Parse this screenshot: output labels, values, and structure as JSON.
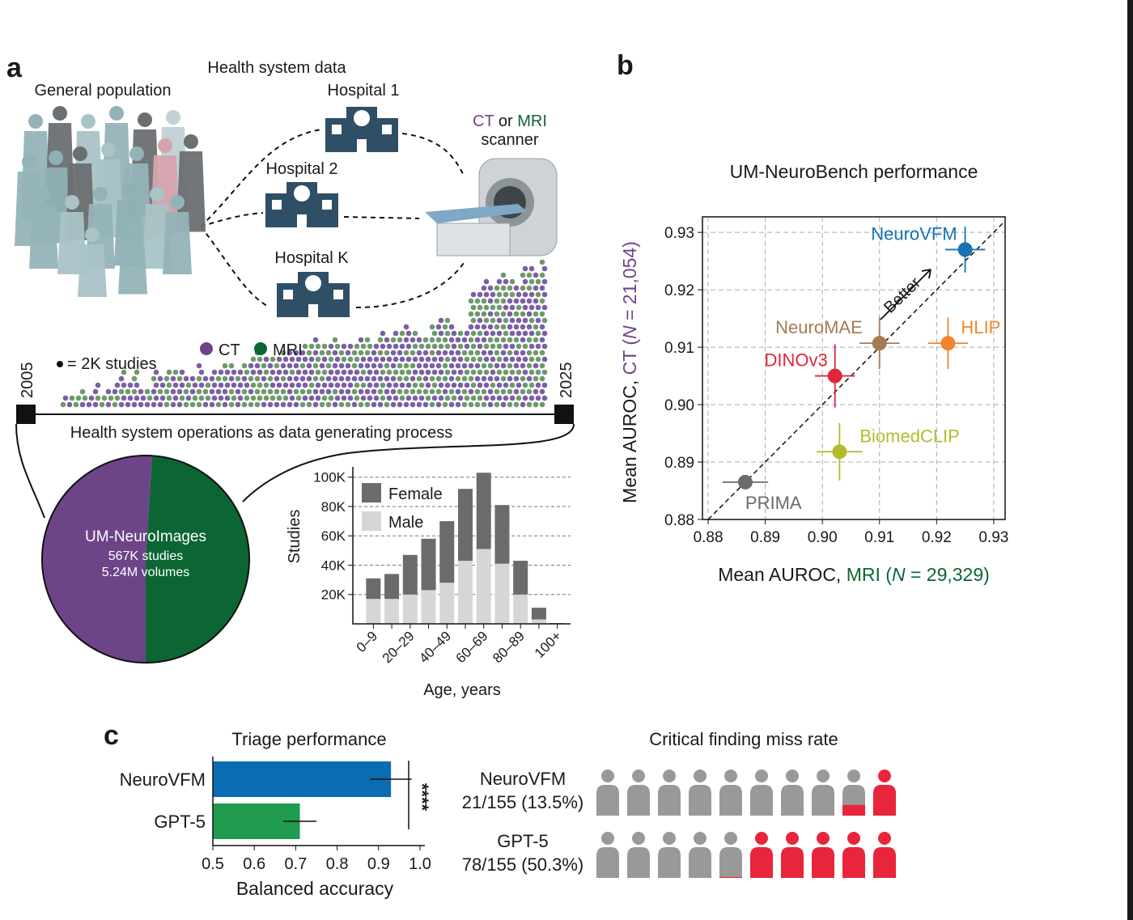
{
  "panel_labels": [
    "a",
    "b",
    "c"
  ],
  "panel_a": {
    "section_title": "Health system data",
    "population": "General population",
    "hospitals": [
      "Hospital 1",
      "Hospital 2",
      "Hospital K"
    ],
    "scanner": {
      "parts": [
        "CT",
        " or ",
        "MRI"
      ],
      "label": "scanner"
    },
    "dot_key": "= 2K studies",
    "timeline": {
      "start": "2005",
      "end": "2025",
      "caption": "Health system operations as data generating process"
    }
  },
  "chart_data": [
    {
      "type": "pie",
      "categories": [
        "CT",
        "MRI"
      ],
      "values": [
        51,
        49
      ],
      "colors": [
        "#6e4489",
        "#0b6633"
      ],
      "center_text": [
        "UM-NeuroImages",
        "567K studies",
        "5.24M volumes"
      ]
    },
    {
      "type": "bar",
      "stacked": true,
      "categories": [
        "0–9",
        null,
        "20–29",
        null,
        "40–49",
        null,
        "60–69",
        null,
        "80–89",
        null,
        "100+"
      ],
      "series": [
        {
          "name": "Male",
          "color": "#d6d6d6",
          "values": [
            17000,
            17000,
            20000,
            23000,
            28000,
            43000,
            51000,
            41000,
            20000,
            3000,
            300
          ]
        },
        {
          "name": "Female",
          "color": "#6b6b6b",
          "values": [
            14000,
            17000,
            27000,
            35000,
            42000,
            49000,
            52000,
            40000,
            23000,
            8000,
            200
          ]
        }
      ],
      "xlabel": "Age, years",
      "ylabel": "Studies",
      "ylim": [
        0,
        107000
      ],
      "yticks": [
        {
          "value": 20000,
          "label": "20K"
        },
        {
          "value": 40000,
          "label": "40K"
        },
        {
          "value": 60000,
          "label": "60K"
        },
        {
          "value": 80000,
          "label": "80K"
        },
        {
          "value": 100000,
          "label": "100K"
        }
      ],
      "grid": true
    },
    {
      "type": "scatter",
      "title": "UM-NeuroBench performance",
      "xlabel": [
        "Mean AUROC, ",
        "MRI (",
        "N",
        " = 29,329)"
      ],
      "ylabel": [
        "Mean AUROC, ",
        "CT (",
        "N",
        " = 21,054)"
      ],
      "xlim": [
        0.879,
        0.932
      ],
      "ylim": [
        0.88,
        0.9327
      ],
      "xticks": [
        0.88,
        0.89,
        {
          "value": 0.9,
          "label": "0.90"
        },
        0.91,
        0.92,
        0.93
      ],
      "yticks": [
        0.88,
        0.89,
        {
          "value": 0.9,
          "label": "0.90"
        },
        0.91,
        0.92,
        0.93
      ],
      "grid": true,
      "identity_line": true,
      "annotation": "Better",
      "series": [
        {
          "name": "NeuroVFM",
          "color": "#1872b4",
          "x": [
            0.925
          ],
          "values": [
            0.927
          ],
          "xerr": [
            0.0035
          ],
          "yerr": [
            0.004
          ]
        },
        {
          "name": "HLIP",
          "color": "#f0862e",
          "x": [
            0.922
          ],
          "values": [
            0.9107
          ],
          "xerr": [
            0.0035
          ],
          "yerr": [
            0.0045
          ]
        },
        {
          "name": "NeuroMAE",
          "color": "#a57c52",
          "x": [
            0.91
          ],
          "values": [
            0.9107
          ],
          "xerr": [
            0.0035
          ],
          "yerr": [
            0.0045
          ]
        },
        {
          "name": "DINOv3",
          "color": "#e0263d",
          "x": [
            0.9022
          ],
          "values": [
            0.905
          ],
          "xerr": [
            0.0035
          ],
          "yerr": [
            0.0055
          ]
        },
        {
          "name": "BiomedCLIP",
          "color": "#b3bb2c",
          "x": [
            0.903
          ],
          "values": [
            0.8918
          ],
          "xerr": [
            0.004
          ],
          "yerr": [
            0.005
          ]
        },
        {
          "name": "PRIMA",
          "color": "#6b6b6b",
          "x": [
            0.8865
          ],
          "values": [
            0.8865
          ],
          "xerr": [
            0.004
          ],
          "yerr": [
            0
          ]
        }
      ]
    },
    {
      "type": "bar",
      "orientation": "horizontal",
      "title": "Triage performance",
      "categories": [
        "NeuroVFM",
        "GPT-5"
      ],
      "values": [
        0.93,
        0.71
      ],
      "errors": [
        0.05,
        0.04
      ],
      "colors": [
        "#0a6db3",
        "#1f9a4e"
      ],
      "xlabel": "Balanced accuracy",
      "xlim": [
        0.5,
        1.0
      ],
      "xticks": [
        0.5,
        0.6,
        0.7,
        0.8,
        0.9,
        {
          "value": 1,
          "label": "1.0"
        }
      ],
      "annotation": "****"
    },
    {
      "type": "pictogram",
      "title": "Critical finding miss rate",
      "categories": [
        "NeuroVFM",
        "GPT-5"
      ],
      "values": [
        13.5,
        50.3
      ],
      "value_labels": [
        "21/155 (13.5%)",
        "78/155 (50.3%)"
      ],
      "color": "#e8253a",
      "base_color": "#999999"
    }
  ]
}
